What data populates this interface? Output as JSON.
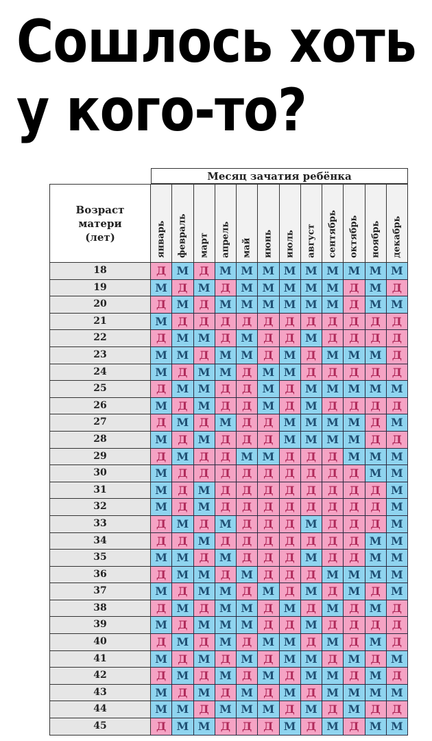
{
  "title": {
    "line1": "Сошлось хоть",
    "line2": "у кого-то?"
  },
  "table": {
    "header_month": "Месяц зачатия ребёнка",
    "header_age": "Возраст матери (лет)",
    "months": [
      "январь",
      "февраль",
      "март",
      "апрель",
      "май",
      "июнь",
      "июль",
      "август",
      "сентябрь",
      "октябрь",
      "ноябрь",
      "декабрь"
    ],
    "colors": {
      "Д": "#f5a3c4",
      "М": "#8fd4ef"
    },
    "rows": [
      {
        "age": "18",
        "cells": [
          "Д",
          "М",
          "Д",
          "М",
          "М",
          "М",
          "М",
          "М",
          "М",
          "М",
          "М",
          "М"
        ]
      },
      {
        "age": "19",
        "cells": [
          "М",
          "Д",
          "М",
          "Д",
          "М",
          "М",
          "М",
          "М",
          "М",
          "Д",
          "М",
          "Д"
        ]
      },
      {
        "age": "20",
        "cells": [
          "Д",
          "М",
          "Д",
          "М",
          "М",
          "М",
          "М",
          "М",
          "М",
          "Д",
          "М",
          "М"
        ]
      },
      {
        "age": "21",
        "cells": [
          "М",
          "Д",
          "Д",
          "Д",
          "Д",
          "Д",
          "Д",
          "Д",
          "Д",
          "Д",
          "Д",
          "Д"
        ]
      },
      {
        "age": "22",
        "cells": [
          "Д",
          "М",
          "М",
          "Д",
          "М",
          "Д",
          "Д",
          "М",
          "Д",
          "Д",
          "Д",
          "Д"
        ]
      },
      {
        "age": "23",
        "cells": [
          "М",
          "М",
          "Д",
          "М",
          "М",
          "Д",
          "М",
          "Д",
          "М",
          "М",
          "М",
          "Д"
        ]
      },
      {
        "age": "24",
        "cells": [
          "М",
          "Д",
          "М",
          "М",
          "Д",
          "М",
          "М",
          "Д",
          "Д",
          "Д",
          "Д",
          "Д"
        ]
      },
      {
        "age": "25",
        "cells": [
          "Д",
          "М",
          "М",
          "Д",
          "Д",
          "М",
          "Д",
          "М",
          "М",
          "М",
          "М",
          "М"
        ]
      },
      {
        "age": "26",
        "cells": [
          "М",
          "Д",
          "М",
          "Д",
          "Д",
          "М",
          "Д",
          "М",
          "Д",
          "Д",
          "Д",
          "Д"
        ]
      },
      {
        "age": "27",
        "cells": [
          "Д",
          "М",
          "Д",
          "М",
          "Д",
          "Д",
          "М",
          "М",
          "М",
          "М",
          "Д",
          "М"
        ]
      },
      {
        "age": "28",
        "cells": [
          "М",
          "Д",
          "М",
          "Д",
          "Д",
          "Д",
          "М",
          "М",
          "М",
          "М",
          "Д",
          "Д"
        ]
      },
      {
        "age": "29",
        "cells": [
          "Д",
          "М",
          "Д",
          "Д",
          "М",
          "М",
          "Д",
          "Д",
          "Д",
          "М",
          "М",
          "М"
        ]
      },
      {
        "age": "30",
        "cells": [
          "М",
          "Д",
          "Д",
          "Д",
          "Д",
          "Д",
          "Д",
          "Д",
          "Д",
          "Д",
          "М",
          "М"
        ]
      },
      {
        "age": "31",
        "cells": [
          "М",
          "Д",
          "М",
          "Д",
          "Д",
          "Д",
          "Д",
          "Д",
          "Д",
          "Д",
          "Д",
          "М"
        ]
      },
      {
        "age": "32",
        "cells": [
          "М",
          "Д",
          "М",
          "Д",
          "Д",
          "Д",
          "Д",
          "Д",
          "Д",
          "Д",
          "Д",
          "М"
        ]
      },
      {
        "age": "33",
        "cells": [
          "Д",
          "М",
          "Д",
          "М",
          "Д",
          "Д",
          "Д",
          "М",
          "Д",
          "Д",
          "Д",
          "М"
        ]
      },
      {
        "age": "34",
        "cells": [
          "Д",
          "Д",
          "М",
          "Д",
          "Д",
          "Д",
          "Д",
          "Д",
          "Д",
          "Д",
          "М",
          "М"
        ]
      },
      {
        "age": "35",
        "cells": [
          "М",
          "М",
          "Д",
          "М",
          "Д",
          "Д",
          "Д",
          "М",
          "Д",
          "Д",
          "М",
          "М"
        ]
      },
      {
        "age": "36",
        "cells": [
          "Д",
          "М",
          "М",
          "Д",
          "М",
          "Д",
          "Д",
          "Д",
          "М",
          "М",
          "М",
          "М"
        ]
      },
      {
        "age": "37",
        "cells": [
          "М",
          "Д",
          "М",
          "М",
          "Д",
          "М",
          "Д",
          "М",
          "Д",
          "М",
          "Д",
          "М"
        ]
      },
      {
        "age": "38",
        "cells": [
          "Д",
          "М",
          "Д",
          "М",
          "М",
          "Д",
          "М",
          "Д",
          "М",
          "Д",
          "М",
          "Д"
        ]
      },
      {
        "age": "39",
        "cells": [
          "М",
          "Д",
          "М",
          "М",
          "М",
          "Д",
          "Д",
          "М",
          "Д",
          "Д",
          "Д",
          "Д"
        ]
      },
      {
        "age": "40",
        "cells": [
          "Д",
          "М",
          "Д",
          "М",
          "Д",
          "М",
          "М",
          "Д",
          "М",
          "Д",
          "М",
          "Д"
        ]
      },
      {
        "age": "41",
        "cells": [
          "М",
          "Д",
          "М",
          "Д",
          "М",
          "Д",
          "М",
          "М",
          "Д",
          "М",
          "Д",
          "М"
        ]
      },
      {
        "age": "42",
        "cells": [
          "Д",
          "М",
          "Д",
          "М",
          "Д",
          "М",
          "Д",
          "М",
          "М",
          "Д",
          "М",
          "Д"
        ]
      },
      {
        "age": "43",
        "cells": [
          "М",
          "Д",
          "М",
          "Д",
          "М",
          "Д",
          "М",
          "Д",
          "М",
          "М",
          "М",
          "М"
        ]
      },
      {
        "age": "44",
        "cells": [
          "М",
          "М",
          "Д",
          "М",
          "М",
          "М",
          "Д",
          "М",
          "Д",
          "М",
          "Д",
          "Д"
        ]
      },
      {
        "age": "45",
        "cells": [
          "Д",
          "М",
          "М",
          "Д",
          "Д",
          "Д",
          "М",
          "Д",
          "М",
          "Д",
          "М",
          "М"
        ]
      }
    ]
  }
}
